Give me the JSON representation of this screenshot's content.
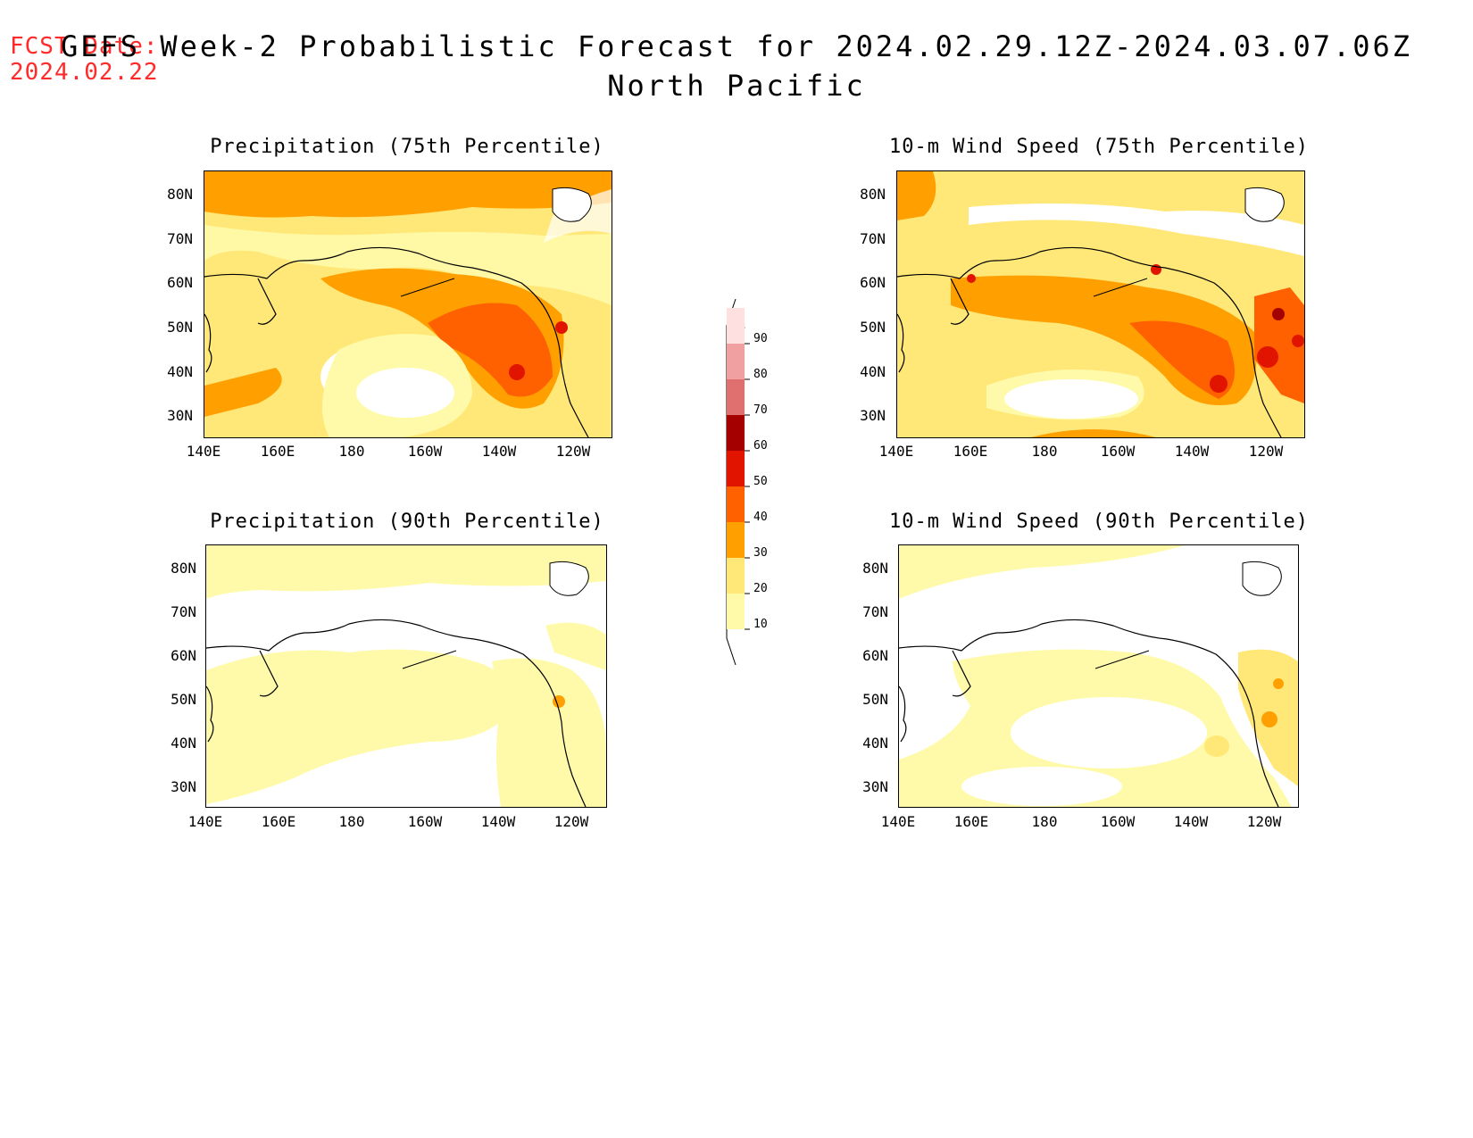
{
  "fcst_date": {
    "label": "FCST Date:",
    "value": "2024.02.22"
  },
  "title": {
    "line1": "GEFS Week-2 Probabilistic Forecast for 2024.02.29.12Z-2024.03.07.06Z",
    "line2": "North Pacific"
  },
  "axes": {
    "lat_labels": [
      "80N",
      "70N",
      "60N",
      "50N",
      "40N",
      "30N"
    ],
    "lon_labels": [
      "140E",
      "160E",
      "180",
      "160W",
      "140W",
      "120W"
    ]
  },
  "panels": [
    {
      "id": "precip75",
      "title": "Precipitation (75th Percentile)"
    },
    {
      "id": "wind75",
      "title": "10-m Wind Speed (75th Percentile)"
    },
    {
      "id": "precip90",
      "title": "Precipitation (90th Percentile)"
    },
    {
      "id": "wind90",
      "title": "10-m Wind Speed (90th Percentile)"
    }
  ],
  "colorbar": {
    "levels": [
      "10",
      "20",
      "30",
      "40",
      "50",
      "60",
      "70",
      "80",
      "90"
    ],
    "colors": [
      "#fffaaa",
      "#ffe878",
      "#ffa000",
      "#ff6000",
      "#e11400",
      "#a50000",
      "#e07070",
      "#f0a0a0",
      "#ffe0e0"
    ]
  },
  "palette": {
    "c10": "#fffaaa",
    "c20": "#ffe878",
    "c30": "#ffa000",
    "c40": "#ff6000",
    "c50": "#e11400",
    "c60": "#a50000"
  }
}
